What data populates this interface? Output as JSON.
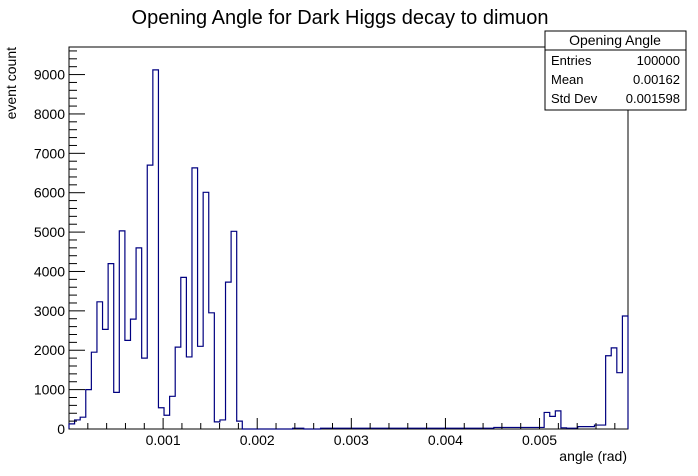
{
  "chart_data": {
    "type": "bar",
    "title": "Opening Angle for Dark Higgs decay to dimuon",
    "xlabel": "angle (rad)",
    "ylabel": "event count",
    "xlim": [
      0,
      0.00594
    ],
    "ylim": [
      0,
      9700
    ],
    "x_ticks": [
      0.001,
      0.002,
      0.003,
      0.004,
      0.005
    ],
    "x_tick_labels": [
      "0.001",
      "0.002",
      "0.003",
      "0.004",
      "0.005"
    ],
    "y_ticks": [
      0,
      1000,
      2000,
      3000,
      4000,
      5000,
      6000,
      7000,
      8000,
      9000
    ],
    "y_tick_labels": [
      "0",
      "1000",
      "2000",
      "3000",
      "4000",
      "5000",
      "6000",
      "7000",
      "8000",
      "9000"
    ],
    "bin_width": 5.94e-05,
    "values": [
      130,
      230,
      300,
      1000,
      1950,
      3230,
      2530,
      4200,
      930,
      5030,
      2250,
      2790,
      4600,
      1800,
      6700,
      9120,
      540,
      350,
      830,
      2080,
      3850,
      1830,
      6630,
      2100,
      6010,
      2950,
      180,
      230,
      3730,
      5020,
      200,
      0,
      0,
      0,
      0,
      0,
      0,
      0,
      0,
      0,
      20,
      20,
      0,
      0,
      0,
      20,
      20,
      20,
      20,
      20,
      20,
      20,
      20,
      20,
      20,
      20,
      20,
      20,
      20,
      20,
      20,
      20,
      20,
      20,
      20,
      20,
      20,
      20,
      20,
      20,
      20,
      20,
      20,
      20,
      20,
      20,
      40,
      40,
      40,
      40,
      40,
      40,
      40,
      40,
      40,
      420,
      320,
      460,
      30,
      20,
      20,
      60,
      60,
      60,
      100,
      100,
      1860,
      2060,
      1430,
      2870
    ],
    "line_color": "#000080"
  },
  "stats_box": {
    "title": "Opening Angle",
    "rows": [
      {
        "label": "Entries",
        "value": "100000"
      },
      {
        "label": "Mean",
        "value": "0.00162"
      },
      {
        "label": "Std Dev",
        "value": "0.001598"
      }
    ]
  }
}
